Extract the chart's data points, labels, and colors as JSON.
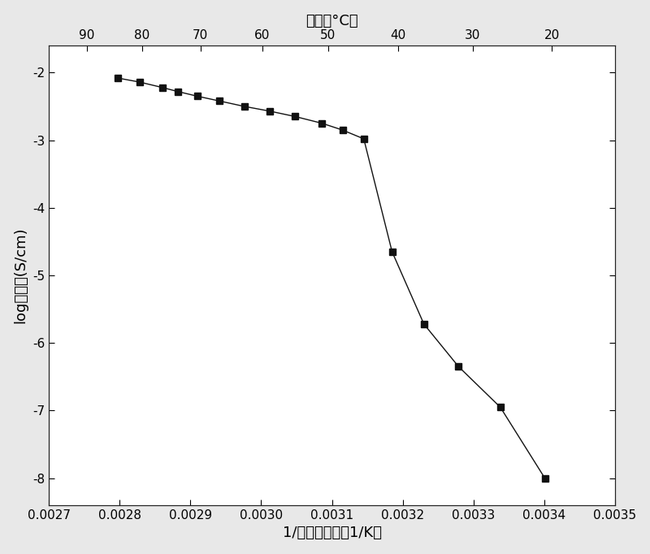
{
  "x_data": [
    0.002797,
    0.002828,
    0.00286,
    0.002882,
    0.00291,
    0.002941,
    0.002976,
    0.003012,
    0.003048,
    0.003086,
    0.003115,
    0.003145,
    0.003185,
    0.00323,
    0.003279,
    0.003338,
    0.003401
  ],
  "y_data": [
    -2.08,
    -2.14,
    -2.22,
    -2.28,
    -2.35,
    -2.42,
    -2.5,
    -2.57,
    -2.65,
    -2.75,
    -2.85,
    -2.98,
    -4.65,
    -5.72,
    -6.35,
    -6.95,
    -8.0
  ],
  "xlabel": "1/热力学温度（1/K）",
  "ylabel": "log电导率(S/cm)",
  "top_xlabel": "温度（°C）",
  "top_xticks": [
    90,
    80,
    70,
    60,
    50,
    40,
    30,
    20
  ],
  "xlim": [
    0.0027,
    0.0035
  ],
  "ylim": [
    -8.4,
    -1.6
  ],
  "yticks": [
    -8,
    -7,
    -6,
    -5,
    -4,
    -3,
    -2
  ],
  "bottom_xtick_vals": [
    0.0027,
    0.0028,
    0.0029,
    0.003,
    0.0031,
    0.0032,
    0.0033,
    0.0034,
    0.0035
  ],
  "bottom_xtick_labels": [
    "0.0027",
    "0.0028",
    "0.0029",
    "0.0030",
    "0.0031",
    "0.0032",
    "0.0033",
    "0.0034",
    "0.0035"
  ],
  "line_color": "#111111",
  "marker_color": "#111111",
  "marker": "s",
  "marker_size": 6,
  "line_width": 1.0,
  "background_color": "#e8e8e8",
  "axes_bg_color": "#ffffff",
  "label_fontsize": 13,
  "tick_fontsize": 11
}
